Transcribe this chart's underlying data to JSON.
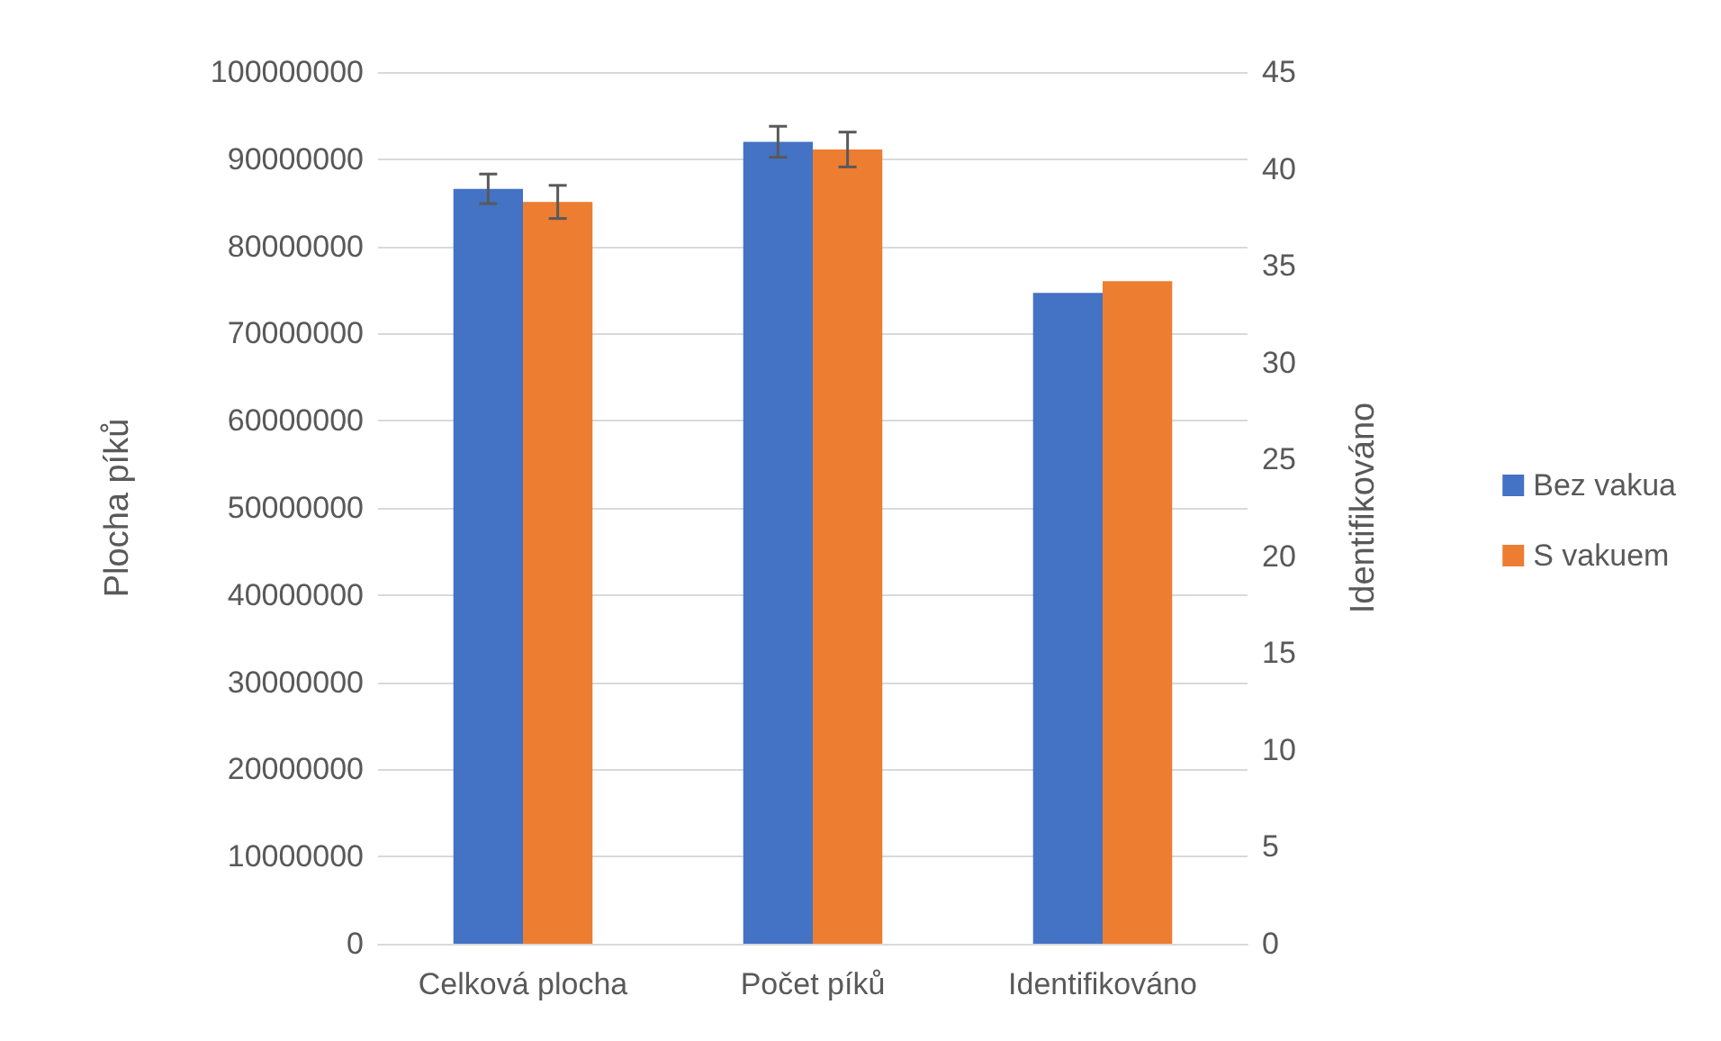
{
  "chart_data": {
    "type": "bar",
    "ylabel": "Plocha píků",
    "y2label": "Identifikováno",
    "categories": [
      "Celková plocha",
      "Počet píků",
      "Identifikováno"
    ],
    "series": [
      {
        "name": "Bez vakua",
        "color": "#4472c4",
        "values": [
          86600000,
          null,
          null
        ],
        "errors": [
          1700000,
          null,
          null
        ]
      },
      {
        "name": "S vakuem",
        "color": "#ed7d31",
        "values": [
          85100000,
          null,
          null
        ],
        "errors": [
          1900000,
          null,
          null
        ]
      },
      {
        "color": "#4472c4",
        "axis": "y2",
        "values": [
          null,
          41.4,
          33.6
        ],
        "errors": [
          null,
          0.8,
          null
        ]
      },
      {
        "color": "#ed7d31",
        "axis": "y2",
        "values": [
          null,
          41.0,
          34.2
        ],
        "errors": [
          null,
          0.9,
          null
        ]
      }
    ],
    "ylim": [
      0,
      100000000
    ],
    "yticks": [
      0,
      10000000,
      20000000,
      30000000,
      40000000,
      50000000,
      60000000,
      70000000,
      80000000,
      90000000,
      100000000
    ],
    "y2lim": [
      0,
      45
    ],
    "y2ticks": [
      0,
      5,
      10,
      15,
      20,
      25,
      30,
      35,
      40,
      45
    ],
    "grid": "y",
    "legend": "right"
  }
}
